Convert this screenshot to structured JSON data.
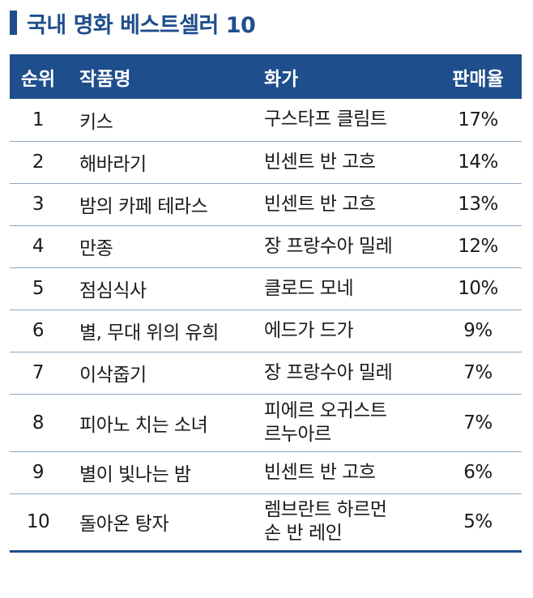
{
  "title": "국내 명화 베스트셀러 10",
  "table": {
    "headers": {
      "rank": "순위",
      "work": "작품명",
      "artist": "화가",
      "rate": "판매율"
    },
    "rows": [
      {
        "rank": "1",
        "work": "키스",
        "artist": [
          "구스타프 클림트"
        ],
        "rate": "17%"
      },
      {
        "rank": "2",
        "work": "해바라기",
        "artist": [
          "빈센트 반 고흐"
        ],
        "rate": "14%"
      },
      {
        "rank": "3",
        "work": "밤의 카페 테라스",
        "artist": [
          "빈센트 반 고흐"
        ],
        "rate": "13%"
      },
      {
        "rank": "4",
        "work": "만종",
        "artist": [
          "장 프랑수아 밀레"
        ],
        "rate": "12%"
      },
      {
        "rank": "5",
        "work": "점심식사",
        "artist": [
          "클로드 모네"
        ],
        "rate": "10%"
      },
      {
        "rank": "6",
        "work": "별, 무대 위의 유희",
        "artist": [
          "에드가 드가"
        ],
        "rate": "9%"
      },
      {
        "rank": "7",
        "work": "이삭줍기",
        "artist": [
          "장 프랑수아 밀레"
        ],
        "rate": "7%"
      },
      {
        "rank": "8",
        "work": "피아노 치는 소녀",
        "artist": [
          "피에르 오귀스트",
          "르누아르"
        ],
        "rate": "7%"
      },
      {
        "rank": "9",
        "work": "별이 빛나는 밤",
        "artist": [
          "빈센트 반 고흐"
        ],
        "rate": "6%"
      },
      {
        "rank": "10",
        "work": "돌아온 탕자",
        "artist": [
          "렘브란트 하르먼",
          "손 반 레인"
        ],
        "rate": "5%"
      }
    ]
  },
  "colors": {
    "accent": "#1e4e8c",
    "divider": "#8fa7c4"
  }
}
